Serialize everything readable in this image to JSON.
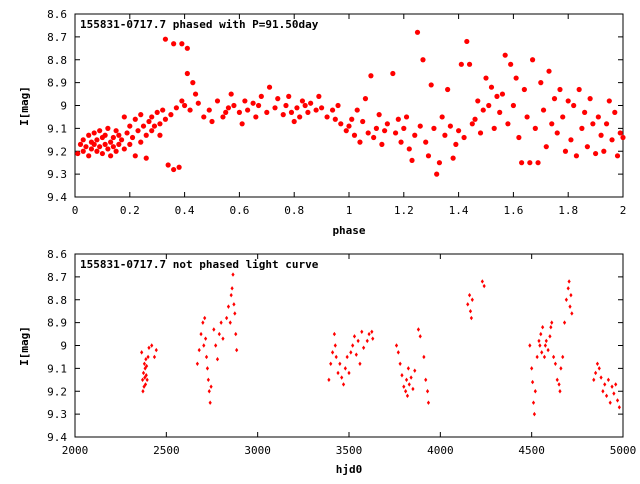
{
  "chart_data": [
    {
      "type": "scatter",
      "title": "155831-0717.7 phased with P=91.50day",
      "xlabel": "phase",
      "ylabel": "I[mag]",
      "xlim": [
        0,
        2
      ],
      "ylim": [
        9.4,
        8.6
      ],
      "y_inverted": true,
      "xticks": [
        "0",
        "0.2",
        "0.4",
        "0.6",
        "0.8",
        "1",
        "1.2",
        "1.4",
        "1.6",
        "1.8",
        "2"
      ],
      "yticks": [
        "8.6",
        "8.7",
        "8.8",
        "8.9",
        "9",
        "9.1",
        "9.2",
        "9.3",
        "9.4"
      ],
      "marker": "filled-circle",
      "color": "#ff0000",
      "points": [
        [
          0.01,
          9.21
        ],
        [
          0.02,
          9.17
        ],
        [
          0.03,
          9.15
        ],
        [
          0.03,
          9.2
        ],
        [
          0.04,
          9.18
        ],
        [
          0.05,
          9.13
        ],
        [
          0.05,
          9.22
        ],
        [
          0.06,
          9.16
        ],
        [
          0.06,
          9.19
        ],
        [
          0.07,
          9.12
        ],
        [
          0.07,
          9.17
        ],
        [
          0.08,
          9.2
        ],
        [
          0.08,
          9.15
        ],
        [
          0.09,
          9.11
        ],
        [
          0.09,
          9.18
        ],
        [
          0.1,
          9.14
        ],
        [
          0.1,
          9.21
        ],
        [
          0.11,
          9.13
        ],
        [
          0.11,
          9.17
        ],
        [
          0.12,
          9.19
        ],
        [
          0.12,
          9.1
        ],
        [
          0.13,
          9.16
        ],
        [
          0.13,
          9.22
        ],
        [
          0.14,
          9.14
        ],
        [
          0.14,
          9.18
        ],
        [
          0.15,
          9.11
        ],
        [
          0.15,
          9.2
        ],
        [
          0.16,
          9.17
        ],
        [
          0.16,
          9.13
        ],
        [
          0.17,
          9.15
        ],
        [
          0.18,
          9.19
        ],
        [
          0.18,
          9.05
        ],
        [
          0.19,
          9.12
        ],
        [
          0.2,
          9.17
        ],
        [
          0.2,
          9.09
        ],
        [
          0.21,
          9.14
        ],
        [
          0.22,
          9.06
        ],
        [
          0.22,
          9.22
        ],
        [
          0.23,
          9.11
        ],
        [
          0.24,
          9.16
        ],
        [
          0.24,
          9.04
        ],
        [
          0.25,
          9.09
        ],
        [
          0.26,
          9.13
        ],
        [
          0.26,
          9.23
        ],
        [
          0.27,
          9.07
        ],
        [
          0.28,
          9.11
        ],
        [
          0.28,
          9.05
        ],
        [
          0.29,
          9.09
        ],
        [
          0.3,
          9.03
        ],
        [
          0.31,
          9.08
        ],
        [
          0.31,
          9.13
        ],
        [
          0.32,
          9.02
        ],
        [
          0.33,
          9.06
        ],
        [
          0.33,
          8.71
        ],
        [
          0.34,
          9.26
        ],
        [
          0.35,
          9.04
        ],
        [
          0.36,
          8.73
        ],
        [
          0.36,
          9.28
        ],
        [
          0.37,
          9.01
        ],
        [
          0.38,
          9.27
        ],
        [
          0.39,
          8.98
        ],
        [
          0.39,
          8.73
        ],
        [
          0.4,
          9.0
        ],
        [
          0.41,
          8.75
        ],
        [
          0.41,
          8.86
        ],
        [
          0.42,
          9.02
        ],
        [
          0.43,
          8.9
        ],
        [
          0.44,
          8.95
        ],
        [
          0.45,
          8.99
        ],
        [
          0.47,
          9.05
        ],
        [
          0.49,
          9.02
        ],
        [
          0.5,
          9.07
        ],
        [
          0.52,
          8.98
        ],
        [
          0.54,
          9.05
        ],
        [
          0.55,
          9.03
        ],
        [
          0.56,
          9.01
        ],
        [
          0.57,
          8.95
        ],
        [
          0.58,
          9.0
        ],
        [
          0.6,
          9.03
        ],
        [
          0.61,
          9.08
        ],
        [
          0.62,
          8.98
        ],
        [
          0.63,
          9.02
        ],
        [
          0.65,
          8.99
        ],
        [
          0.66,
          9.05
        ],
        [
          0.67,
          9.0
        ],
        [
          0.68,
          8.96
        ],
        [
          0.7,
          9.03
        ],
        [
          0.71,
          8.92
        ],
        [
          0.73,
          9.01
        ],
        [
          0.74,
          8.97
        ],
        [
          0.76,
          9.04
        ],
        [
          0.77,
          9.0
        ],
        [
          0.78,
          8.96
        ],
        [
          0.79,
          9.03
        ],
        [
          0.8,
          9.07
        ],
        [
          0.81,
          9.01
        ],
        [
          0.82,
          9.05
        ],
        [
          0.83,
          8.98
        ],
        [
          0.84,
          9.0
        ],
        [
          0.85,
          9.03
        ],
        [
          0.86,
          8.99
        ],
        [
          0.88,
          9.02
        ],
        [
          0.89,
          8.96
        ],
        [
          0.9,
          9.01
        ],
        [
          0.92,
          9.05
        ],
        [
          0.94,
          9.02
        ],
        [
          0.95,
          9.06
        ],
        [
          0.96,
          9.0
        ],
        [
          0.97,
          9.08
        ],
        [
          0.99,
          9.11
        ],
        [
          1.0,
          9.09
        ],
        [
          1.01,
          9.06
        ],
        [
          1.02,
          9.13
        ],
        [
          1.03,
          9.02
        ],
        [
          1.04,
          9.16
        ],
        [
          1.05,
          9.07
        ],
        [
          1.06,
          8.97
        ],
        [
          1.07,
          9.12
        ],
        [
          1.08,
          8.87
        ],
        [
          1.09,
          9.14
        ],
        [
          1.1,
          9.1
        ],
        [
          1.11,
          9.04
        ],
        [
          1.12,
          9.17
        ],
        [
          1.13,
          9.11
        ],
        [
          1.14,
          9.08
        ],
        [
          1.16,
          8.86
        ],
        [
          1.17,
          9.12
        ],
        [
          1.18,
          9.06
        ],
        [
          1.19,
          9.16
        ],
        [
          1.2,
          9.1
        ],
        [
          1.21,
          9.05
        ],
        [
          1.22,
          9.19
        ],
        [
          1.23,
          9.24
        ],
        [
          1.24,
          9.13
        ],
        [
          1.25,
          8.68
        ],
        [
          1.26,
          9.09
        ],
        [
          1.27,
          8.8
        ],
        [
          1.28,
          9.16
        ],
        [
          1.29,
          9.22
        ],
        [
          1.3,
          8.91
        ],
        [
          1.31,
          9.1
        ],
        [
          1.32,
          9.3
        ],
        [
          1.33,
          9.25
        ],
        [
          1.34,
          9.05
        ],
        [
          1.35,
          9.13
        ],
        [
          1.36,
          8.93
        ],
        [
          1.37,
          9.09
        ],
        [
          1.38,
          9.23
        ],
        [
          1.39,
          9.17
        ],
        [
          1.4,
          9.11
        ],
        [
          1.41,
          8.82
        ],
        [
          1.42,
          9.14
        ],
        [
          1.43,
          8.72
        ],
        [
          1.44,
          8.82
        ],
        [
          1.45,
          9.08
        ],
        [
          1.46,
          9.06
        ],
        [
          1.47,
          8.98
        ],
        [
          1.48,
          9.12
        ],
        [
          1.49,
          9.02
        ],
        [
          1.5,
          8.88
        ],
        [
          1.51,
          9.0
        ],
        [
          1.52,
          8.92
        ],
        [
          1.53,
          9.1
        ],
        [
          1.54,
          8.96
        ],
        [
          1.55,
          9.03
        ],
        [
          1.56,
          8.95
        ],
        [
          1.57,
          8.78
        ],
        [
          1.58,
          9.08
        ],
        [
          1.59,
          8.82
        ],
        [
          1.6,
          9.0
        ],
        [
          1.61,
          8.88
        ],
        [
          1.62,
          9.14
        ],
        [
          1.63,
          9.25
        ],
        [
          1.64,
          8.93
        ],
        [
          1.65,
          9.05
        ],
        [
          1.66,
          9.25
        ],
        [
          1.67,
          8.8
        ],
        [
          1.68,
          9.1
        ],
        [
          1.69,
          9.25
        ],
        [
          1.7,
          8.9
        ],
        [
          1.71,
          9.02
        ],
        [
          1.72,
          9.18
        ],
        [
          1.73,
          8.85
        ],
        [
          1.74,
          9.08
        ],
        [
          1.75,
          8.97
        ],
        [
          1.76,
          9.12
        ],
        [
          1.77,
          8.93
        ],
        [
          1.78,
          9.05
        ],
        [
          1.79,
          9.2
        ],
        [
          1.8,
          8.98
        ],
        [
          1.81,
          9.15
        ],
        [
          1.82,
          9.0
        ],
        [
          1.83,
          9.22
        ],
        [
          1.84,
          8.93
        ],
        [
          1.85,
          9.1
        ],
        [
          1.86,
          9.03
        ],
        [
          1.87,
          9.18
        ],
        [
          1.88,
          8.97
        ],
        [
          1.89,
          9.08
        ],
        [
          1.9,
          9.21
        ],
        [
          1.91,
          9.05
        ],
        [
          1.92,
          9.13
        ],
        [
          1.93,
          9.2
        ],
        [
          1.94,
          9.08
        ],
        [
          1.95,
          8.98
        ],
        [
          1.96,
          9.15
        ],
        [
          1.97,
          9.03
        ],
        [
          1.98,
          9.22
        ],
        [
          1.99,
          9.12
        ],
        [
          2.0,
          9.14
        ]
      ]
    },
    {
      "type": "scatter",
      "title": "155831-0717.7 not phased light curve",
      "xlabel": "hjd0",
      "ylabel": "I[mag]",
      "xlim": [
        2000,
        5000
      ],
      "ylim": [
        9.4,
        8.6
      ],
      "y_inverted": true,
      "xticks": [
        "2000",
        "2500",
        "3000",
        "3500",
        "4000",
        "4500",
        "5000"
      ],
      "yticks": [
        "8.6",
        "8.7",
        "8.8",
        "8.9",
        "9",
        "9.1",
        "9.2",
        "9.3",
        "9.4"
      ],
      "marker": "small-diamond",
      "color": "#ff0000",
      "points": [
        [
          2365,
          9.03
        ],
        [
          2370,
          9.15
        ],
        [
          2372,
          9.2
        ],
        [
          2375,
          9.12
        ],
        [
          2378,
          9.18
        ],
        [
          2380,
          9.08
        ],
        [
          2382,
          9.14
        ],
        [
          2384,
          9.1
        ],
        [
          2386,
          9.17
        ],
        [
          2388,
          9.06
        ],
        [
          2390,
          9.13
        ],
        [
          2392,
          9.09
        ],
        [
          2395,
          9.15
        ],
        [
          2400,
          9.05
        ],
        [
          2405,
          9.01
        ],
        [
          2420,
          9.0
        ],
        [
          2435,
          9.05
        ],
        [
          2445,
          9.02
        ],
        [
          2670,
          9.08
        ],
        [
          2680,
          9.02
        ],
        [
          2690,
          8.95
        ],
        [
          2700,
          8.9
        ],
        [
          2705,
          9.0
        ],
        [
          2710,
          8.88
        ],
        [
          2715,
          8.97
        ],
        [
          2720,
          9.05
        ],
        [
          2725,
          9.1
        ],
        [
          2730,
          9.15
        ],
        [
          2735,
          9.2
        ],
        [
          2740,
          9.25
        ],
        [
          2745,
          9.18
        ],
        [
          2760,
          8.93
        ],
        [
          2770,
          9.0
        ],
        [
          2780,
          9.06
        ],
        [
          2790,
          8.95
        ],
        [
          2800,
          8.9
        ],
        [
          2810,
          8.97
        ],
        [
          2830,
          8.88
        ],
        [
          2840,
          8.83
        ],
        [
          2850,
          8.9
        ],
        [
          2855,
          8.78
        ],
        [
          2860,
          8.75
        ],
        [
          2865,
          8.69
        ],
        [
          2870,
          8.82
        ],
        [
          2875,
          8.86
        ],
        [
          2880,
          8.95
        ],
        [
          2885,
          9.02
        ],
        [
          3390,
          9.15
        ],
        [
          3400,
          9.08
        ],
        [
          3410,
          9.03
        ],
        [
          3420,
          8.95
        ],
        [
          3425,
          9.0
        ],
        [
          3430,
          9.05
        ],
        [
          3440,
          9.12
        ],
        [
          3450,
          9.08
        ],
        [
          3460,
          9.14
        ],
        [
          3470,
          9.17
        ],
        [
          3480,
          9.1
        ],
        [
          3490,
          9.05
        ],
        [
          3500,
          9.12
        ],
        [
          3510,
          9.03
        ],
        [
          3520,
          9.0
        ],
        [
          3530,
          8.96
        ],
        [
          3540,
          9.04
        ],
        [
          3550,
          8.98
        ],
        [
          3560,
          9.08
        ],
        [
          3570,
          8.94
        ],
        [
          3580,
          9.01
        ],
        [
          3600,
          8.98
        ],
        [
          3610,
          8.95
        ],
        [
          3625,
          8.94
        ],
        [
          3630,
          8.97
        ],
        [
          3760,
          9.0
        ],
        [
          3770,
          9.03
        ],
        [
          3780,
          9.08
        ],
        [
          3790,
          9.13
        ],
        [
          3800,
          9.18
        ],
        [
          3810,
          9.2
        ],
        [
          3815,
          9.15
        ],
        [
          3820,
          9.22
        ],
        [
          3825,
          9.1
        ],
        [
          3830,
          9.17
        ],
        [
          3840,
          9.14
        ],
        [
          3850,
          9.19
        ],
        [
          3860,
          9.11
        ],
        [
          3880,
          8.93
        ],
        [
          3890,
          8.96
        ],
        [
          3910,
          9.05
        ],
        [
          3920,
          9.15
        ],
        [
          3930,
          9.2
        ],
        [
          3935,
          9.25
        ],
        [
          4150,
          8.82
        ],
        [
          4160,
          8.78
        ],
        [
          4165,
          8.85
        ],
        [
          4170,
          8.88
        ],
        [
          4175,
          8.8
        ],
        [
          4230,
          8.72
        ],
        [
          4240,
          8.74
        ],
        [
          4490,
          9.0
        ],
        [
          4500,
          9.1
        ],
        [
          4505,
          9.16
        ],
        [
          4510,
          9.25
        ],
        [
          4515,
          9.3
        ],
        [
          4520,
          9.2
        ],
        [
          4530,
          9.05
        ],
        [
          4540,
          8.98
        ],
        [
          4545,
          9.0
        ],
        [
          4550,
          8.95
        ],
        [
          4555,
          9.03
        ],
        [
          4560,
          8.92
        ],
        [
          4570,
          9.05
        ],
        [
          4575,
          9.0
        ],
        [
          4580,
          8.98
        ],
        [
          4590,
          9.02
        ],
        [
          4600,
          8.96
        ],
        [
          4605,
          8.92
        ],
        [
          4610,
          8.9
        ],
        [
          4620,
          9.05
        ],
        [
          4630,
          9.08
        ],
        [
          4640,
          9.15
        ],
        [
          4650,
          9.17
        ],
        [
          4655,
          9.2
        ],
        [
          4660,
          9.1
        ],
        [
          4670,
          9.05
        ],
        [
          4680,
          8.9
        ],
        [
          4690,
          8.8
        ],
        [
          4700,
          8.75
        ],
        [
          4705,
          8.72
        ],
        [
          4710,
          8.83
        ],
        [
          4715,
          8.78
        ],
        [
          4720,
          8.86
        ],
        [
          4840,
          9.15
        ],
        [
          4850,
          9.12
        ],
        [
          4860,
          9.08
        ],
        [
          4870,
          9.1
        ],
        [
          4880,
          9.14
        ],
        [
          4890,
          9.2
        ],
        [
          4900,
          9.17
        ],
        [
          4910,
          9.22
        ],
        [
          4920,
          9.15
        ],
        [
          4930,
          9.25
        ],
        [
          4940,
          9.18
        ],
        [
          4950,
          9.21
        ],
        [
          4960,
          9.17
        ],
        [
          4970,
          9.24
        ],
        [
          4980,
          9.27
        ]
      ]
    }
  ]
}
